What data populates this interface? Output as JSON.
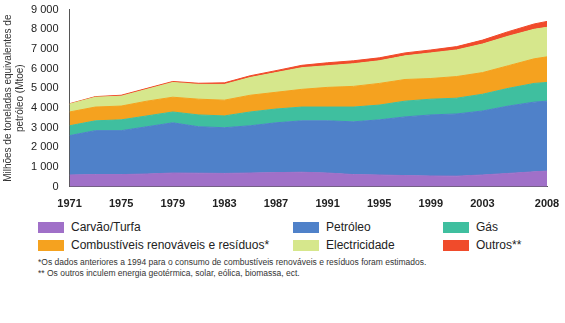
{
  "chart_data": {
    "type": "area",
    "stacked": true,
    "grid": false,
    "y_label": "Milhões de toneladas equivalentes de petróleo (Mtoe)",
    "x": [
      1971,
      1973,
      1975,
      1977,
      1979,
      1981,
      1983,
      1985,
      1987,
      1989,
      1991,
      1993,
      1995,
      1997,
      1999,
      2001,
      2003,
      2005,
      2007,
      2008
    ],
    "xlim": [
      1971,
      2008
    ],
    "xticks": [
      1971,
      1975,
      1979,
      1983,
      1987,
      1991,
      1995,
      1999,
      2003,
      2008
    ],
    "ylim": [
      0,
      9000
    ],
    "yticks": [
      0,
      {
        "value": 1000,
        "label": "1 000"
      },
      {
        "value": 2000,
        "label": "2 000"
      },
      {
        "value": 3000,
        "label": "3 000"
      },
      {
        "value": 4000,
        "label": "4 000"
      },
      {
        "value": 5000,
        "label": "5 000"
      },
      {
        "value": 6000,
        "label": "6 000"
      },
      {
        "value": 7000,
        "label": "7 000"
      },
      {
        "value": 8000,
        "label": "8 000"
      },
      {
        "value": 9000,
        "label": "9 000"
      }
    ],
    "series": [
      {
        "name": "Carvão/Turfa",
        "color": "#a070c8",
        "values": [
          600,
          620,
          620,
          650,
          700,
          690,
          680,
          700,
          720,
          740,
          700,
          620,
          600,
          570,
          550,
          540,
          600,
          680,
          760,
          800
        ]
      },
      {
        "name": "Petróleo",
        "color": "#4f81c9",
        "values": [
          2000,
          2230,
          2230,
          2400,
          2550,
          2360,
          2320,
          2400,
          2530,
          2610,
          2650,
          2680,
          2800,
          2980,
          3100,
          3160,
          3250,
          3420,
          3540,
          3550
        ]
      },
      {
        "name": "Gás",
        "color": "#3fbf9f",
        "values": [
          500,
          500,
          550,
          550,
          550,
          600,
          600,
          700,
          700,
          700,
          700,
          750,
          750,
          800,
          800,
          800,
          850,
          900,
          950,
          950
        ]
      },
      {
        "name": "Combustíveis renováveis e resíduos*",
        "color": "#f5a21f",
        "values": [
          700,
          700,
          700,
          750,
          750,
          800,
          800,
          850,
          850,
          900,
          1000,
          1050,
          1100,
          1100,
          1050,
          1100,
          1100,
          1150,
          1250,
          1300
        ]
      },
      {
        "name": "Electricidade",
        "color": "#d6e78c",
        "values": [
          400,
          500,
          500,
          600,
          750,
          750,
          800,
          900,
          1000,
          1100,
          1100,
          1150,
          1150,
          1200,
          1300,
          1350,
          1450,
          1500,
          1500,
          1500
        ]
      },
      {
        "name": "Outros**",
        "color": "#f04b2b",
        "values": [
          20,
          30,
          50,
          50,
          50,
          60,
          80,
          90,
          100,
          120,
          150,
          150,
          150,
          150,
          150,
          170,
          200,
          230,
          270,
          300
        ]
      }
    ],
    "notes": [
      "*Os dados anteriores a 1994 para o consumo de combustíveis renováveis e resíduos foram estimados.",
      "** Os outros inculem energia geotérmica, solar, eólica, biomassa, ect."
    ]
  }
}
